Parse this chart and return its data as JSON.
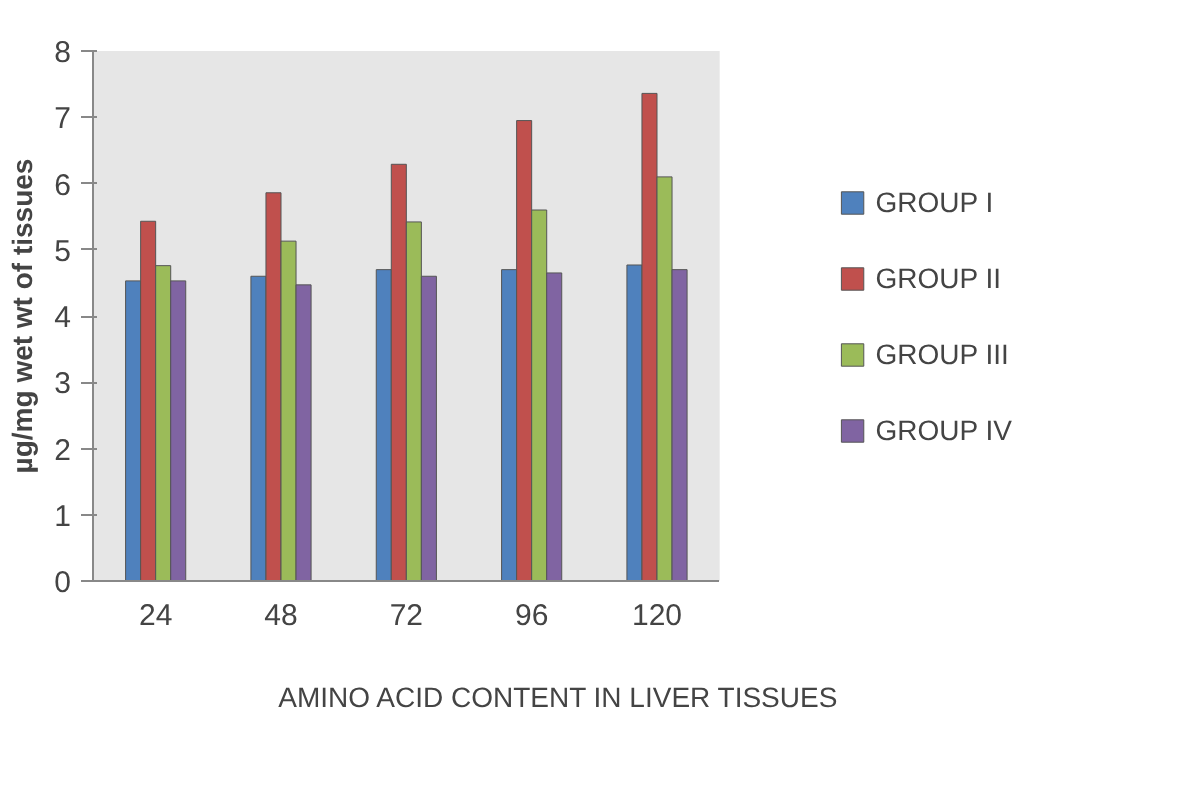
{
  "chart_data": {
    "type": "bar",
    "xlabel": "AMINO ACID CONTENT  IN LIVER TISSUES",
    "ylabel": "µg/mg wet wt of tissues",
    "categories": [
      "24",
      "48",
      "72",
      "96",
      "120"
    ],
    "series": [
      {
        "name": "GROUP I",
        "color": "#4f81bd",
        "values": [
          4.53,
          4.6,
          4.7,
          4.7,
          4.77
        ]
      },
      {
        "name": "GROUP II",
        "color": "#c0504d",
        "values": [
          5.43,
          5.86,
          6.29,
          6.95,
          7.36
        ]
      },
      {
        "name": "GROUP III",
        "color": "#9bbb59",
        "values": [
          4.76,
          5.13,
          5.42,
          5.6,
          6.1
        ]
      },
      {
        "name": "GROUP IV",
        "color": "#8064a2",
        "values": [
          4.53,
          4.47,
          4.6,
          4.65,
          4.7
        ]
      }
    ],
    "ylim": [
      0,
      8
    ],
    "yticks": [
      0,
      1,
      2,
      3,
      4,
      5,
      6,
      7,
      8
    ],
    "grid": false,
    "legend": "right"
  }
}
